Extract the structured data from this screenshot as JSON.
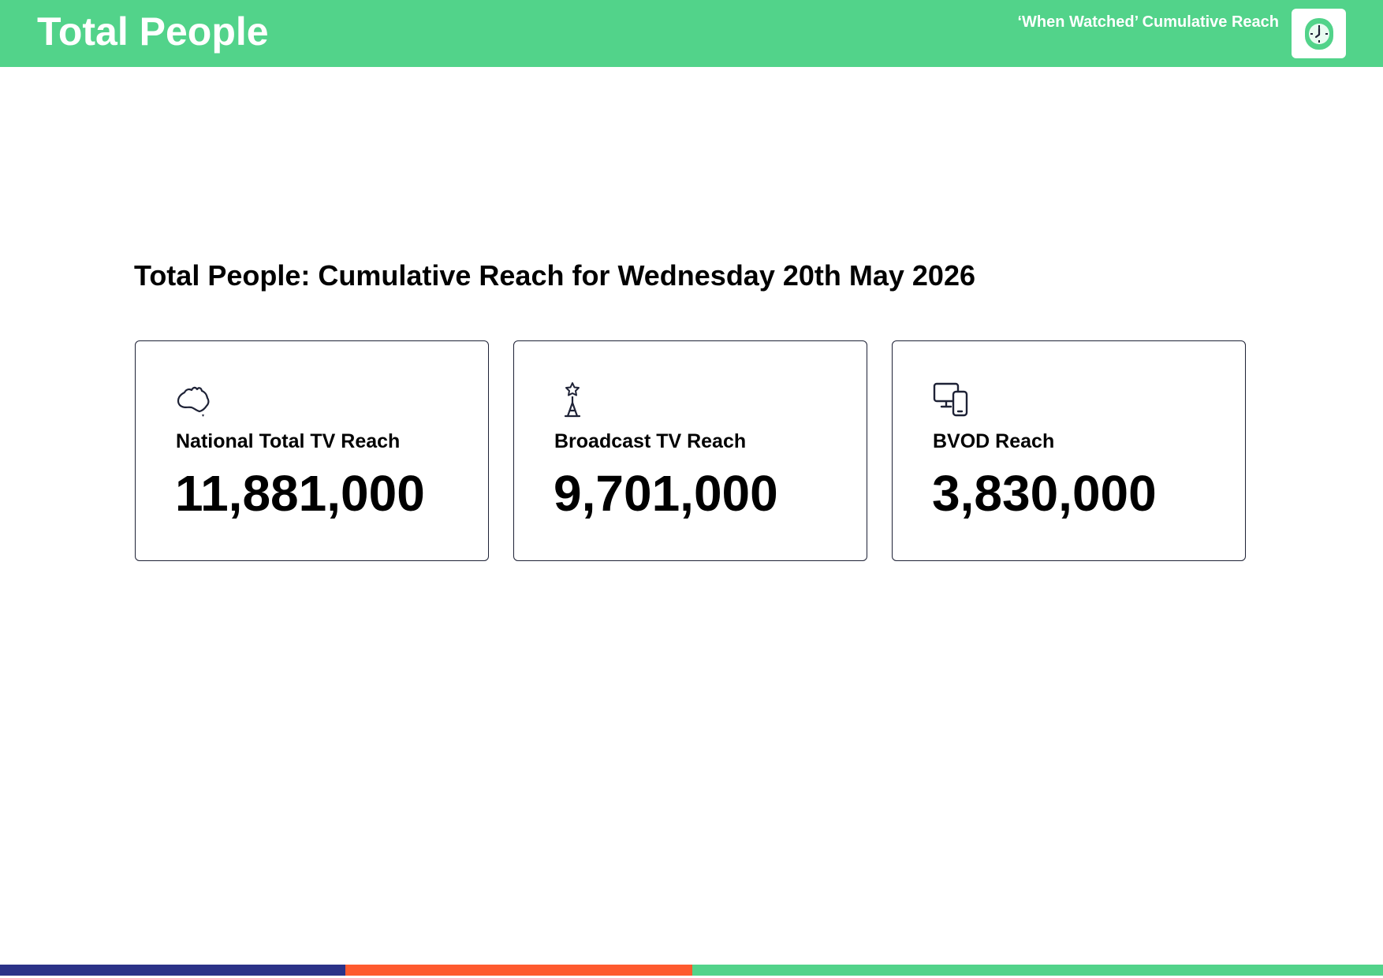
{
  "header": {
    "title": "Total People",
    "subtitle": "‘When Watched’ Cumulative Reach",
    "logo_icon": "clock-icon"
  },
  "report": {
    "title": "Total People: Cumulative Reach for Wednesday 20th May 2026"
  },
  "cards": [
    {
      "icon": "australia-map-icon",
      "label": "National Total TV Reach",
      "value": "11,881,000"
    },
    {
      "icon": "broadcast-tower-icon",
      "label": "Broadcast TV Reach",
      "value": "9,701,000"
    },
    {
      "icon": "devices-icon",
      "label": "BVOD Reach",
      "value": "3,830,000"
    }
  ],
  "colors": {
    "header_bg": "#52d38a",
    "text": "#000000",
    "icon_stroke": "#1e2236",
    "footer_navy": "#2b3288",
    "footer_orange": "#fe5a2e",
    "footer_green": "#52d38a"
  }
}
